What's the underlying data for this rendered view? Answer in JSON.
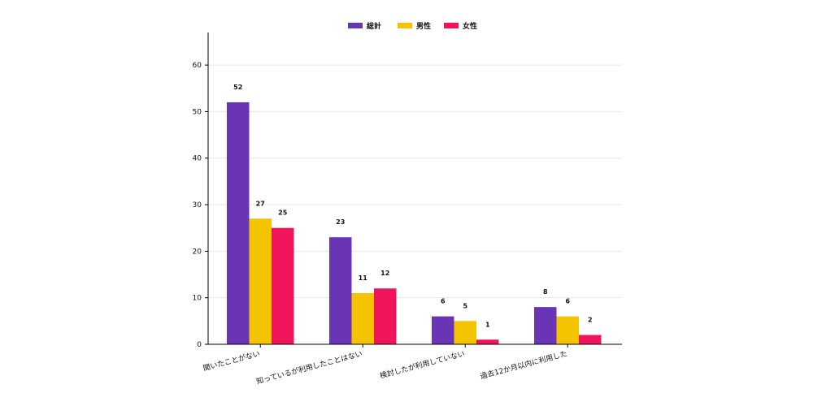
{
  "chart_data": {
    "type": "bar",
    "categories": [
      "聞いたことがない",
      "知っているが利用したことはない",
      "検討したが利用していない",
      "過去12か月以内に利用した"
    ],
    "series": [
      {
        "name": "総計",
        "values": [
          52,
          23,
          6,
          8
        ],
        "color": "#6a35b5"
      },
      {
        "name": "男性",
        "values": [
          27,
          11,
          5,
          6
        ],
        "color": "#f5c400"
      },
      {
        "name": "女性",
        "values": [
          25,
          12,
          1,
          2
        ],
        "color": "#f0145a"
      }
    ],
    "yticks": [
      0,
      10,
      20,
      30,
      40,
      50,
      60
    ],
    "ylim": [
      0,
      67
    ],
    "grid": true,
    "legend_position": "top-center",
    "data_labels": true,
    "title": "",
    "xlabel": "",
    "ylabel": ""
  }
}
